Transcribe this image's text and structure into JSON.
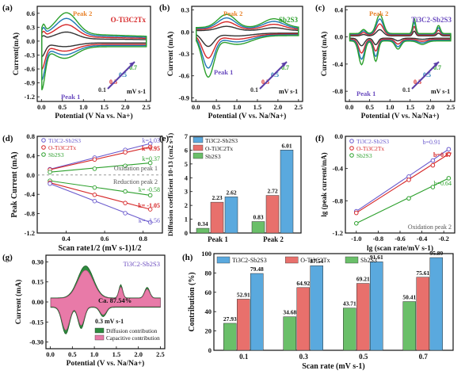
{
  "chart_data": [
    {
      "panel": "(a)",
      "type": "line",
      "title": "O-Ti3C2Tx",
      "xlabel": "Potential (V Na vs. Na+)",
      "ylabel": "Current(mA)",
      "xlim": [
        -0.1,
        2.6
      ],
      "ylim": [
        -1.3,
        0.75
      ],
      "xticks": [
        "0.0",
        "0.5",
        "1.0",
        "1.5",
        "2.0",
        "2.5"
      ],
      "yticks": [
        "-1.2",
        "-0.9",
        "-0.6",
        "-0.3",
        "0.0",
        "0.3",
        "0.6"
      ],
      "annotations": [
        "Peak 2",
        "Peak 1",
        "0.1",
        "0.3",
        "0.5",
        "0.7",
        "mV s-1"
      ],
      "series": [
        {
          "name": "0.1",
          "color": "#333333",
          "scale": 0.32
        },
        {
          "name": "0.3",
          "color": "#d62728",
          "scale": 0.58
        },
        {
          "name": "0.5",
          "color": "#1f77b4",
          "scale": 0.8
        },
        {
          "name": "0.7",
          "color": "#2ca02c",
          "scale": 1.0
        }
      ]
    },
    {
      "panel": "(b)",
      "type": "line",
      "title": "Sb2S3",
      "xlabel": "Potential (V vs. Na/Na+)",
      "ylabel": "Current (mA)",
      "xlim": [
        -0.1,
        2.6
      ],
      "ylim": [
        -0.95,
        0.35
      ],
      "xticks": [
        "0.0",
        "0.5",
        "1.0",
        "1.5",
        "2.0",
        "2.5"
      ],
      "yticks": [
        "-0.9",
        "-0.6",
        "-0.3",
        "0.0",
        "0.3"
      ],
      "annotations": [
        "Peak 2",
        "Peak 1",
        "0.1",
        "0.3",
        "0.5",
        "0.7",
        "mV s-1"
      ],
      "series": [
        {
          "name": "0.1",
          "color": "#333333",
          "scale": 0.32
        },
        {
          "name": "0.3",
          "color": "#d62728",
          "scale": 0.58
        },
        {
          "name": "0.5",
          "color": "#1f77b4",
          "scale": 0.8
        },
        {
          "name": "0.7",
          "color": "#2ca02c",
          "scale": 1.0
        }
      ]
    },
    {
      "panel": "(c)",
      "type": "line",
      "title": "Ti3C2-Sb2S3",
      "xlabel": "Potential (V vs. Na/Na+)",
      "ylabel": "Current (mA)",
      "xlim": [
        -0.1,
        2.6
      ],
      "ylim": [
        -0.95,
        0.45
      ],
      "xticks": [
        "0.0",
        "0.5",
        "1.0",
        "1.5",
        "2.0",
        "2.5"
      ],
      "yticks": [
        "-0.8",
        "-0.4",
        "0.0",
        "0.4"
      ],
      "annotations": [
        "Peak 2",
        "Peak 1",
        "0.1",
        "0.3",
        "0.5",
        "0.7",
        "mV s-1"
      ],
      "series": [
        {
          "name": "0.1",
          "color": "#333333",
          "scale": 0.32
        },
        {
          "name": "0.3",
          "color": "#d62728",
          "scale": 0.58
        },
        {
          "name": "0.5",
          "color": "#1f77b4",
          "scale": 0.8
        },
        {
          "name": "0.7",
          "color": "#2ca02c",
          "scale": 1.0
        }
      ]
    },
    {
      "panel": "(d)",
      "type": "scatter",
      "xlabel": "Scan rate1/2 (mV s-1)1/2",
      "ylabel": "Peak Current (mA)",
      "xlim": [
        0.25,
        0.9
      ],
      "ylim": [
        -1.2,
        0.8
      ],
      "xticks": [
        "0.4",
        "0.6",
        "0.8"
      ],
      "yticks": [
        "-1.2",
        "-0.8",
        "-0.4",
        "0.0",
        "0.4",
        "0.8"
      ],
      "x": [
        0.316,
        0.548,
        0.707,
        0.837
      ],
      "legend": [
        "Ti3C2-Sb2S3",
        "O-Ti3C2Tx",
        "Sb2S3"
      ],
      "annotations": [
        "Oxidation peak 1",
        "Reduction peak 2",
        "k=1.03",
        "k=0.95",
        "k=0.37",
        "k= -0.58",
        "k= -1.05",
        "k= -1.56"
      ],
      "series": [
        {
          "name": "Ti3C2-Sb2S3 ox",
          "color": "#6a5acd",
          "values": [
            0.12,
            0.36,
            0.52,
            0.65
          ]
        },
        {
          "name": "O-Ti3C2Tx ox",
          "color": "#d62728",
          "values": [
            0.11,
            0.32,
            0.47,
            0.58
          ]
        },
        {
          "name": "Sb2S3 ox",
          "color": "#2ca02c",
          "values": [
            0.06,
            0.13,
            0.19,
            0.25
          ]
        },
        {
          "name": "Sb2S3 red",
          "color": "#2ca02c",
          "values": [
            -0.12,
            -0.26,
            -0.34,
            -0.42
          ]
        },
        {
          "name": "O-Ti3C2Tx red",
          "color": "#d62728",
          "values": [
            -0.16,
            -0.41,
            -0.58,
            -0.71
          ]
        },
        {
          "name": "Ti3C2-Sb2S3 red",
          "color": "#6a5acd",
          "values": [
            -0.18,
            -0.54,
            -0.79,
            -0.98
          ]
        }
      ]
    },
    {
      "panel": "(e)",
      "type": "bar",
      "ylabel": "Diffusion coefficient 10-13 (cm2 s-1)",
      "ylim": [
        0,
        7
      ],
      "yticks": [
        "0",
        "1",
        "2",
        "3",
        "4",
        "5",
        "6",
        "7"
      ],
      "categories": [
        "Peak 1",
        "Peak 2"
      ],
      "series": [
        {
          "name": "Sb2S3",
          "color": "#6abf69",
          "values": [
            0.34,
            0.83
          ]
        },
        {
          "name": "O-Ti3C2Tx",
          "color": "#e8706c",
          "values": [
            2.23,
            2.72
          ]
        },
        {
          "name": "Ti3C2-Sb2S3",
          "color": "#5aa9de",
          "values": [
            2.62,
            6.01
          ]
        }
      ],
      "labels": [
        "0.34",
        "2.23",
        "2.62",
        "0.83",
        "2.72",
        "6.01"
      ]
    },
    {
      "panel": "(f)",
      "type": "scatter",
      "xlabel": "lg (scan rate/mV s-1)",
      "ylabel": "lg (peak current/mA)",
      "xlim": [
        -1.1,
        -0.1
      ],
      "ylim": [
        -1.2,
        0.0
      ],
      "xticks": [
        "-1.0",
        "-0.8",
        "-0.6",
        "-0.4",
        "-0.2"
      ],
      "yticks": [
        "-1.2",
        "-0.8",
        "-0.4",
        "0.0"
      ],
      "legend": [
        "Ti3C2-Sb2S3",
        "O-Ti3C2Tx",
        "Sb2S3"
      ],
      "annotations": [
        "b=0.91",
        "b=0.87",
        "b=0.64",
        "Oxidation peak 2"
      ],
      "x": [
        -1.0,
        -0.52,
        -0.3,
        -0.155
      ],
      "series": [
        {
          "name": "Ti3C2-Sb2S3",
          "color": "#6a5acd",
          "values": [
            -0.93,
            -0.5,
            -0.3,
            -0.16
          ]
        },
        {
          "name": "O-Ti3C2Tx",
          "color": "#d62728",
          "values": [
            -0.95,
            -0.54,
            -0.36,
            -0.22
          ]
        },
        {
          "name": "Sb2S3",
          "color": "#2ca02c",
          "values": [
            -1.08,
            -0.77,
            -0.63,
            -0.52
          ]
        }
      ]
    },
    {
      "panel": "(g)",
      "type": "area",
      "title": "Ti3C2-Sb2S3",
      "xlabel": "Potential (V vs. Na/Na+)",
      "ylabel": "Current (mA)",
      "xlim": [
        -0.1,
        2.6
      ],
      "ylim": [
        -0.35,
        0.35
      ],
      "xticks": [
        "0.0",
        "0.5",
        "1.0",
        "1.5",
        "2.0",
        "2.5"
      ],
      "yticks": [
        "-0.30",
        "-0.15",
        "0.00",
        "0.15",
        "0.30"
      ],
      "annotations": [
        "Ca. 87.54%",
        "0.3 mV s-1"
      ],
      "legend": [
        "Diffusion contribution",
        "Capacitive contribution"
      ],
      "colors": {
        "diffusion": "#2e8b3e",
        "capacitive": "#e87aa8"
      }
    },
    {
      "panel": "(h)",
      "type": "bar",
      "xlabel": "Scan rate (mV s-1)",
      "ylabel": "Contribution (%)",
      "ylim": [
        0,
        100
      ],
      "yticks": [
        "0",
        "20",
        "40",
        "60",
        "80",
        "100"
      ],
      "categories": [
        "0.1",
        "0.3",
        "0.5",
        "0.7"
      ],
      "series": [
        {
          "name": "Sb2S3",
          "color": "#6abf69",
          "values": [
            27.93,
            34.68,
            43.71,
            50.41
          ]
        },
        {
          "name": "O-Ti3C2Tx",
          "color": "#e8706c",
          "values": [
            52.91,
            64.92,
            69.21,
            75.61
          ]
        },
        {
          "name": "Ti3C2-Sb2S3",
          "color": "#5aa9de",
          "values": [
            79.48,
            87.54,
            91.61,
            95.89
          ]
        }
      ],
      "legend": [
        "Ti3C2-Sb2S3",
        "O-Ti3C2Tx",
        "Sb2S3"
      ]
    }
  ]
}
